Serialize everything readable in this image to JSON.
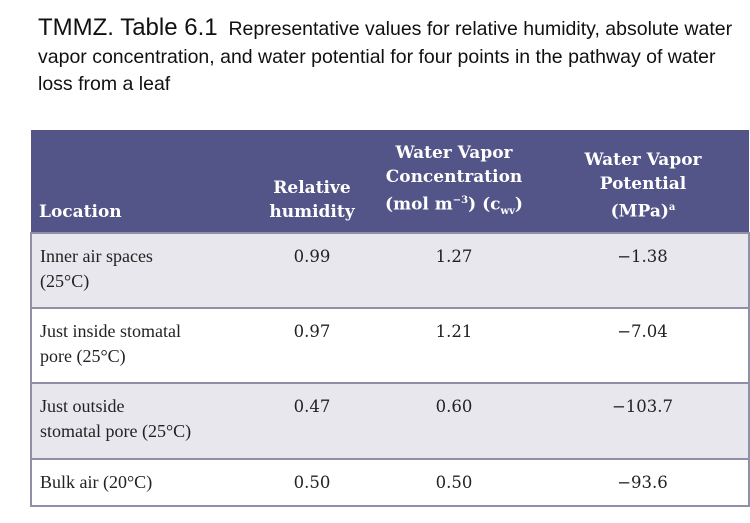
{
  "caption": {
    "label": "TMMZ. Table 6.1",
    "text": "Representative values for relative humidity, absolute water vapor concentration, and water potential for four points in the pathway of water loss from a leaf"
  },
  "table": {
    "headers": {
      "location": "Location",
      "relative_humidity_1": "Relative",
      "relative_humidity_2": "humidity",
      "concentration_1": "Water Vapor",
      "concentration_2": "Concentration",
      "concentration_3": "(mol m",
      "concentration_exp": "−3",
      "concentration_4": ") (c",
      "concentration_sub": "wv",
      "concentration_5": ")",
      "potential_1": "Water Vapor",
      "potential_2": "Potential",
      "potential_3": "(MPa)",
      "potential_sup": "a"
    },
    "rows": [
      {
        "location_1": "Inner air spaces",
        "location_2": "(25°C)",
        "rh": "0.99",
        "conc": "1.27",
        "potential": "−1.38"
      },
      {
        "location_1": "Just inside stomatal",
        "location_2": "pore (25°C)",
        "rh": "0.97",
        "conc": "1.21",
        "potential": "−7.04"
      },
      {
        "location_1": "Just outside",
        "location_2": "stomatal pore (25°C)",
        "rh": "0.47",
        "conc": "0.60",
        "potential": "−103.7"
      },
      {
        "location_1": "Bulk air (20°C)",
        "location_2": "",
        "rh": "0.50",
        "conc": "0.50",
        "potential": "−93.6"
      }
    ]
  },
  "colors": {
    "header_bg": "#535488",
    "shaded_row": "#e7e7ed"
  }
}
